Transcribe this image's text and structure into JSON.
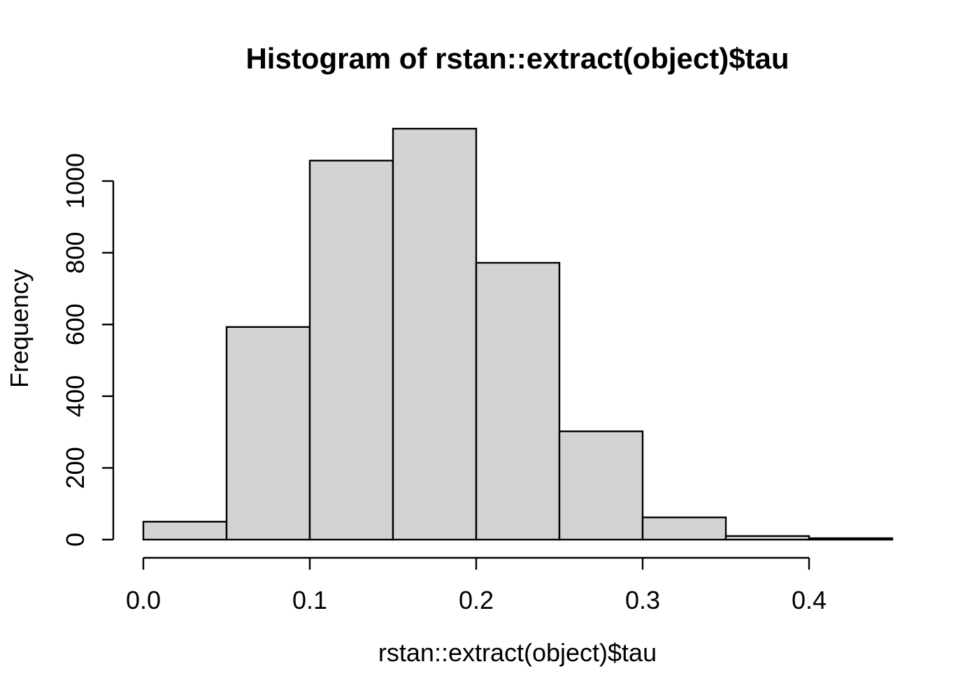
{
  "chart_data": {
    "type": "bar",
    "subtype": "histogram",
    "title": "Histogram of rstan::extract(object)$tau",
    "xlabel": "rstan::extract(object)$tau",
    "ylabel": "Frequency",
    "bins": [
      {
        "from": 0.0,
        "to": 0.05,
        "count": 50
      },
      {
        "from": 0.05,
        "to": 0.1,
        "count": 593
      },
      {
        "from": 0.1,
        "to": 0.15,
        "count": 1057
      },
      {
        "from": 0.15,
        "to": 0.2,
        "count": 1146
      },
      {
        "from": 0.2,
        "to": 0.25,
        "count": 772
      },
      {
        "from": 0.25,
        "to": 0.3,
        "count": 302
      },
      {
        "from": 0.3,
        "to": 0.35,
        "count": 62
      },
      {
        "from": 0.35,
        "to": 0.4,
        "count": 10
      },
      {
        "from": 0.4,
        "to": 0.45,
        "count": 4
      }
    ],
    "x_ticks": [
      {
        "value": 0.0,
        "label": "0.0"
      },
      {
        "value": 0.1,
        "label": "0.1"
      },
      {
        "value": 0.2,
        "label": "0.2"
      },
      {
        "value": 0.3,
        "label": "0.3"
      },
      {
        "value": 0.4,
        "label": "0.4"
      }
    ],
    "y_ticks": [
      {
        "value": 0,
        "label": "0"
      },
      {
        "value": 200,
        "label": "200"
      },
      {
        "value": 400,
        "label": "400"
      },
      {
        "value": 600,
        "label": "600"
      },
      {
        "value": 800,
        "label": "800"
      },
      {
        "value": 1000,
        "label": "1000"
      }
    ],
    "xlim": [
      0,
      0.45
    ],
    "ylim": [
      0,
      1000
    ],
    "grid": false,
    "legend": "none",
    "colors": {
      "bar_fill": "#d3d3d3",
      "bar_border": "#000000",
      "axis": "#000000",
      "text": "#000000",
      "background": "#ffffff"
    }
  }
}
